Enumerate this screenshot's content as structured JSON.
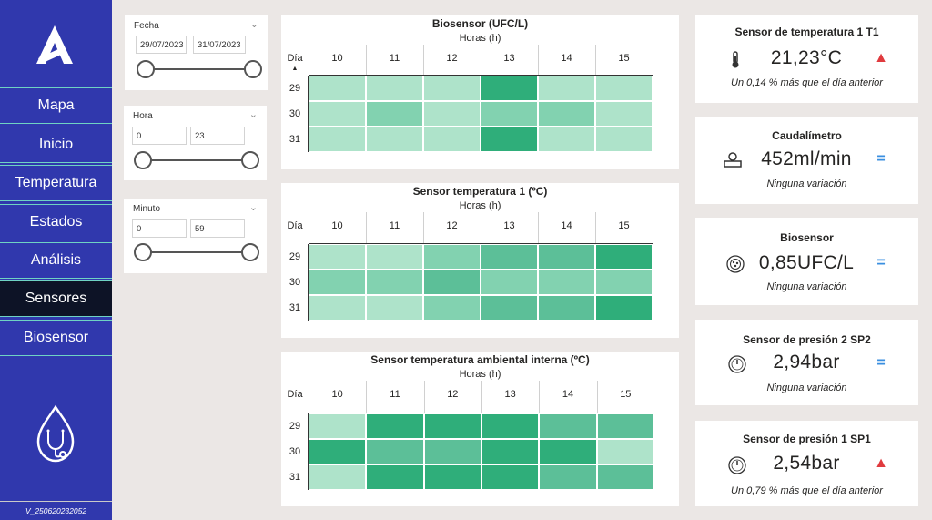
{
  "colors": {
    "sidebar": "#3038ad",
    "accent": "#6fd3c3",
    "active": "#0d1326",
    "up": "#e03a3e",
    "equal": "#3a8fe0"
  },
  "nav": {
    "items": [
      {
        "label": "Mapa",
        "active": false
      },
      {
        "label": "Inicio",
        "active": false
      },
      {
        "label": "Temperatura",
        "active": false
      },
      {
        "label": "Estados",
        "active": false
      },
      {
        "label": "Análisis",
        "active": false
      },
      {
        "label": "Sensores",
        "active": true
      },
      {
        "label": "Biosensor",
        "active": false
      }
    ],
    "version": "V_250620232052"
  },
  "slicers": {
    "fecha": {
      "title": "Fecha",
      "from": "29/07/2023",
      "to": "31/07/2023"
    },
    "hora": {
      "title": "Hora",
      "from": "0",
      "to": "23"
    },
    "minuto": {
      "title": "Minuto",
      "from": "0",
      "to": "59"
    }
  },
  "heatmaps": [
    {
      "title": "Biosensor (UFC/L)",
      "subtitle": "Horas (h)",
      "row_header": "Día",
      "sort_icon": "sort-ascending-icon",
      "columns": [
        "10",
        "11",
        "12",
        "13",
        "14",
        "15"
      ],
      "rows": [
        "29",
        "30",
        "31"
      ],
      "levels": [
        [
          1,
          1,
          1,
          4,
          1,
          1
        ],
        [
          1,
          2,
          1,
          2,
          2,
          1
        ],
        [
          1,
          1,
          1,
          4,
          1,
          1
        ]
      ]
    },
    {
      "title": "Sensor temperatura 1 (ºC)",
      "subtitle": "Horas (h)",
      "row_header": "Día",
      "columns": [
        "10",
        "11",
        "12",
        "13",
        "14",
        "15"
      ],
      "rows": [
        "29",
        "30",
        "31"
      ],
      "levels": [
        [
          1,
          1,
          2,
          3,
          3,
          4
        ],
        [
          2,
          2,
          3,
          2,
          2,
          2
        ],
        [
          1,
          1,
          2,
          3,
          3,
          4
        ]
      ]
    },
    {
      "title": "Sensor temperatura ambiental interna (ºC)",
      "subtitle": "Horas (h)",
      "row_header": "Día",
      "columns": [
        "10",
        "11",
        "12",
        "13",
        "14",
        "15"
      ],
      "rows": [
        "29",
        "30",
        "31"
      ],
      "levels": [
        [
          1,
          4,
          4,
          4,
          3,
          3
        ],
        [
          4,
          3,
          3,
          4,
          4,
          1
        ],
        [
          1,
          4,
          4,
          4,
          3,
          3
        ]
      ]
    }
  ],
  "kpis": [
    {
      "title": "Sensor de temperatura 1 T1",
      "value": "21,23°C",
      "icon": "thermometer-icon",
      "trend": "up",
      "trend_symbol": "▲",
      "note": "Un 0,14 % más que el día anterior"
    },
    {
      "title": "Caudalímetro",
      "value": "452ml/min",
      "icon": "flowmeter-icon",
      "trend": "equal",
      "trend_symbol": "=",
      "note": "Ninguna variación"
    },
    {
      "title": "Biosensor",
      "value": "0,85UFC/L",
      "icon": "bacteria-icon",
      "trend": "equal",
      "trend_symbol": "=",
      "note": "Ninguna variación"
    },
    {
      "title": "Sensor de presión 2 SP2",
      "value": "2,94bar",
      "icon": "pressure-gauge-icon",
      "trend": "equal",
      "trend_symbol": "=",
      "note": "Ninguna variación"
    },
    {
      "title": "Sensor de presión 1 SP1",
      "value": "2,54bar",
      "icon": "pressure-gauge-icon",
      "trend": "up",
      "trend_symbol": "▲",
      "note": "Un 0,79 % más que el día anterior"
    }
  ]
}
